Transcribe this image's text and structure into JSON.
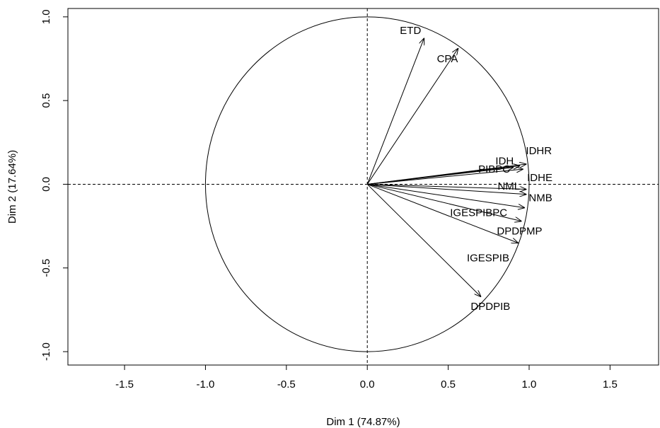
{
  "chart_data": {
    "type": "scatter",
    "subtype": "pca-variable-correlation-circle",
    "xlabel": "Dim 1 (74.87%)",
    "ylabel": "Dim 2 (17.64%)",
    "xlim": [
      -1.85,
      1.8
    ],
    "ylim": [
      -1.08,
      1.05
    ],
    "x_ticks": [
      "-1.5",
      "-1.0",
      "-0.5",
      "0.0",
      "0.5",
      "1.0",
      "1.5"
    ],
    "y_ticks": [
      "-1.0",
      "-0.5",
      "0.0",
      "0.5",
      "1.0"
    ],
    "unit_circle": true,
    "reference_lines": "dashed at x = 0 and y = 0",
    "variables": [
      {
        "name": "ETD",
        "x": 0.35,
        "y": 0.87
      },
      {
        "name": "CPA",
        "x": 0.56,
        "y": 0.81
      },
      {
        "name": "IDHR",
        "x": 0.98,
        "y": 0.12
      },
      {
        "name": "IDH",
        "x": 0.94,
        "y": 0.11
      },
      {
        "name": "PIBPC",
        "x": 0.9,
        "y": 0.1
      },
      {
        "name": "IDHE",
        "x": 0.96,
        "y": 0.09
      },
      {
        "name": "NML",
        "x": 0.98,
        "y": -0.03
      },
      {
        "name": "NMB",
        "x": 0.98,
        "y": -0.06
      },
      {
        "name": "IGESPIBPC",
        "x": 0.97,
        "y": -0.14
      },
      {
        "name": "DPDPMP",
        "x": 0.95,
        "y": -0.22
      },
      {
        "name": "IGESPIB",
        "x": 0.93,
        "y": -0.35
      },
      {
        "name": "DPDPIB",
        "x": 0.7,
        "y": -0.67
      }
    ]
  }
}
